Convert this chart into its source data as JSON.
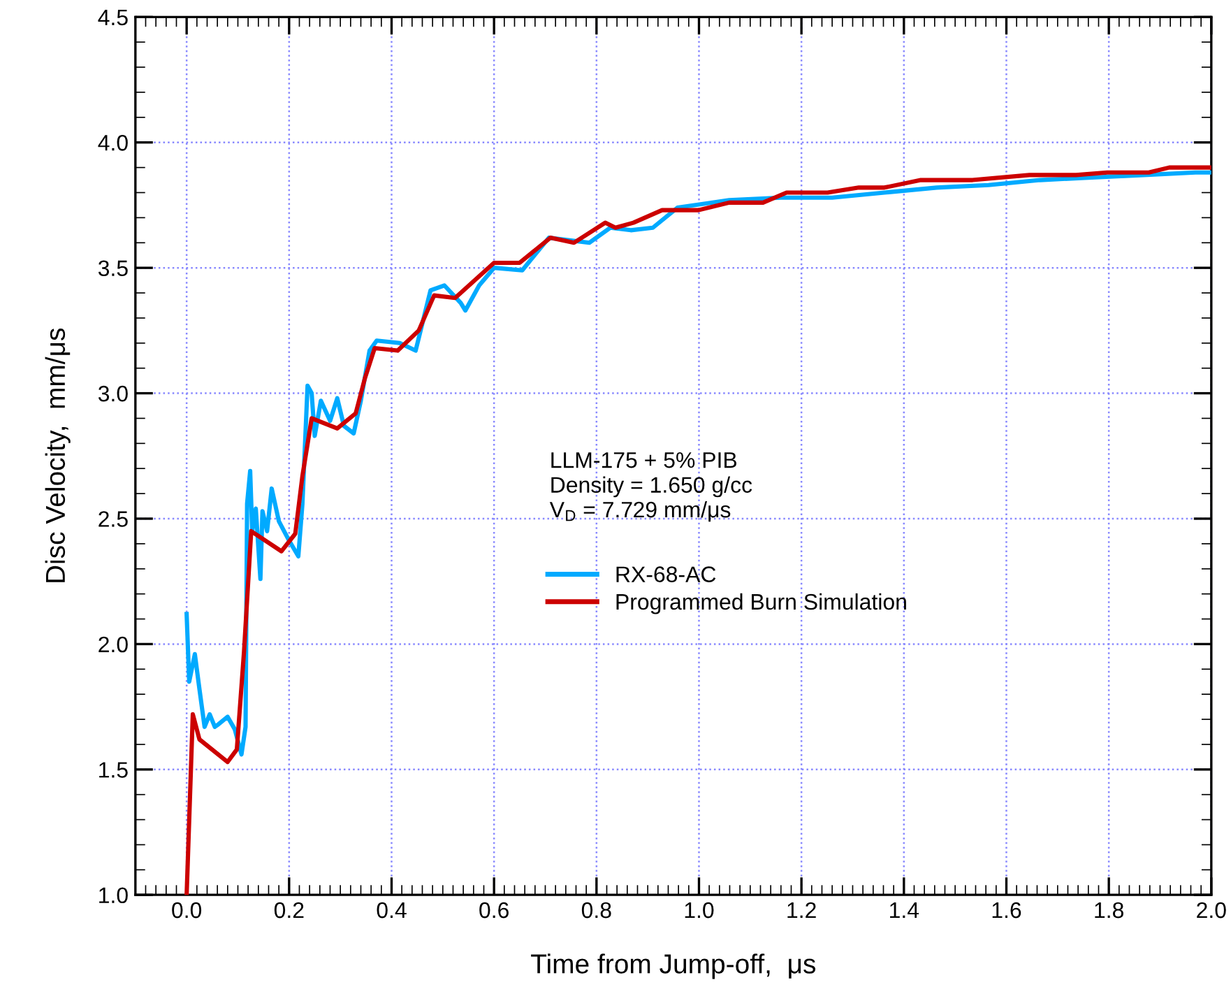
{
  "chart_data": {
    "type": "line",
    "xlabel": "Time from Jump-off,  μs",
    "ylabel": "Disc Velocity,  mm/μs",
    "annotations": [
      "LLM-175 + 5% PIB\nDensity = 1.650 g/cc\nV$_{D}$ = 7.729 mm/μs"
    ],
    "xlim": [
      -0.1,
      2.0
    ],
    "ylim": [
      1.0,
      4.5
    ],
    "xticks": [
      {
        "value": 0,
        "label": "0.0"
      },
      0.2,
      0.4,
      0.6,
      0.8,
      {
        "value": 1,
        "label": "1.0"
      },
      1.2,
      1.4,
      1.6,
      1.8,
      {
        "value": 2,
        "label": "2.0"
      }
    ],
    "yticks": [
      {
        "value": 1,
        "label": "1.0"
      },
      1.5,
      {
        "value": 2,
        "label": "2.0"
      },
      2.5,
      {
        "value": 3,
        "label": "3.0"
      },
      3.5,
      {
        "value": 4,
        "label": "4.0"
      },
      4.5
    ],
    "grid": true,
    "legend": "center",
    "marker": "none",
    "line_style": "solid",
    "series": [
      {
        "name": "RX-68-AC",
        "color": "#00aaff",
        "x": [
          0.0,
          0.005,
          0.016,
          0.025,
          0.035,
          0.045,
          0.055,
          0.062,
          0.08,
          0.094,
          0.107,
          0.115,
          0.118,
          0.124,
          0.128,
          0.135,
          0.144,
          0.148,
          0.157,
          0.166,
          0.18,
          0.198,
          0.218,
          0.226,
          0.236,
          0.244,
          0.25,
          0.262,
          0.28,
          0.294,
          0.307,
          0.326,
          0.34,
          0.357,
          0.371,
          0.416,
          0.447,
          0.476,
          0.503,
          0.535,
          0.544,
          0.571,
          0.6,
          0.655,
          0.707,
          0.786,
          0.827,
          0.867,
          0.91,
          0.958,
          1.059,
          1.16,
          1.26,
          1.362,
          1.464,
          1.565,
          1.666,
          1.767,
          1.868,
          1.969,
          2.0
        ],
        "values": [
          2.12,
          1.85,
          1.96,
          1.82,
          1.67,
          1.72,
          1.67,
          1.68,
          1.71,
          1.66,
          1.56,
          1.67,
          2.56,
          2.69,
          2.45,
          2.54,
          2.26,
          2.53,
          2.45,
          2.62,
          2.49,
          2.42,
          2.35,
          2.56,
          3.03,
          3.0,
          2.83,
          2.97,
          2.89,
          2.98,
          2.87,
          2.84,
          2.97,
          3.17,
          3.21,
          3.2,
          3.17,
          3.41,
          3.43,
          3.36,
          3.33,
          3.43,
          3.5,
          3.49,
          3.62,
          3.6,
          3.66,
          3.65,
          3.66,
          3.74,
          3.77,
          3.78,
          3.78,
          3.8,
          3.82,
          3.83,
          3.85,
          3.86,
          3.87,
          3.88,
          3.88
        ]
      },
      {
        "name": "Programmed Burn Simulation",
        "color": "#cc0000",
        "x": [
          0.0,
          0.012,
          0.025,
          0.08,
          0.098,
          0.112,
          0.126,
          0.185,
          0.212,
          0.226,
          0.244,
          0.294,
          0.33,
          0.348,
          0.367,
          0.412,
          0.453,
          0.483,
          0.524,
          0.6,
          0.65,
          0.71,
          0.756,
          0.817,
          0.837,
          0.872,
          0.928,
          0.999,
          1.059,
          1.125,
          1.171,
          1.251,
          1.312,
          1.362,
          1.433,
          1.534,
          1.645,
          1.736,
          1.797,
          1.878,
          1.918,
          2.0
        ],
        "values": [
          1.0,
          1.72,
          1.62,
          1.53,
          1.58,
          1.97,
          2.45,
          2.37,
          2.44,
          2.67,
          2.9,
          2.86,
          2.92,
          3.06,
          3.18,
          3.17,
          3.25,
          3.39,
          3.38,
          3.52,
          3.52,
          3.62,
          3.6,
          3.68,
          3.66,
          3.68,
          3.73,
          3.73,
          3.76,
          3.76,
          3.8,
          3.8,
          3.82,
          3.82,
          3.85,
          3.85,
          3.87,
          3.87,
          3.88,
          3.88,
          3.9,
          3.9
        ]
      }
    ]
  }
}
